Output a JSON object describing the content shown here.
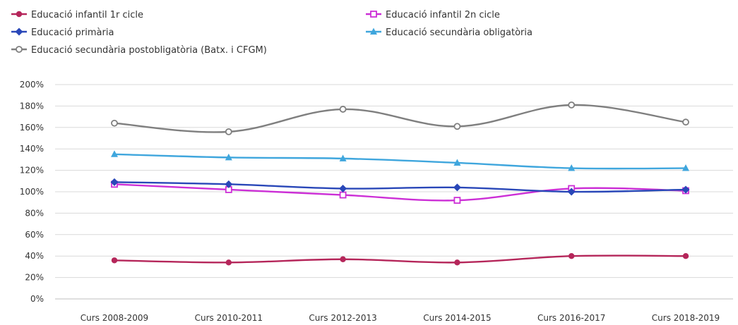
{
  "chart_data": {
    "type": "line",
    "categories": [
      "Curs 2008-2009",
      "Curs 2010-2011",
      "Curs 2012-2013",
      "Curs 2014-2015",
      "Curs 2016-2017",
      "Curs 2018-2019"
    ],
    "ylim": [
      0,
      200
    ],
    "ytick_step": 20,
    "ytick_labels": [
      "0%",
      "20%",
      "40%",
      "60%",
      "80%",
      "100%",
      "120%",
      "140%",
      "160%",
      "180%",
      "200%"
    ],
    "grid": "horizontal",
    "legend_position": "top",
    "series": [
      {
        "name": "Educació infantil 1r cicle",
        "color": "#b5265a",
        "marker": "circle-filled",
        "values": [
          36,
          34,
          37,
          34,
          40,
          40
        ]
      },
      {
        "name": "Educació infantil 2n cicle",
        "color": "#cc2fd6",
        "marker": "square-open",
        "values": [
          107,
          102,
          97,
          92,
          103,
          101
        ]
      },
      {
        "name": "Educació primària",
        "color": "#2947b8",
        "marker": "diamond-filled",
        "values": [
          109,
          107,
          103,
          104,
          100,
          102
        ]
      },
      {
        "name": "Educació secundària obligatòria",
        "color": "#3fa6dd",
        "marker": "triangle-filled",
        "values": [
          135,
          132,
          131,
          127,
          122,
          122
        ]
      },
      {
        "name": "Educació secundària postobligatòria (Batx. i CFGM)",
        "color": "#7f7f7f",
        "marker": "circle-open",
        "values": [
          164,
          156,
          177,
          161,
          181,
          165
        ]
      }
    ]
  }
}
